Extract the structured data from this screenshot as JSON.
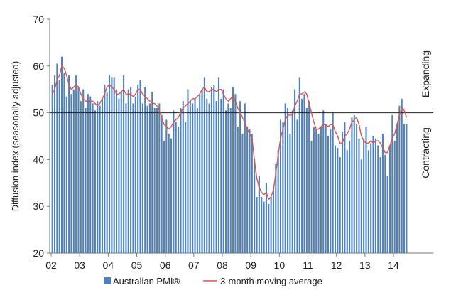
{
  "chart_data": {
    "type": "bar+line",
    "ylabel": "Diffusion index (seasonally adjusted)",
    "ylim": [
      20,
      70
    ],
    "y_ticks": [
      "20",
      "30",
      "40",
      "50",
      "60",
      "70"
    ],
    "x_ticks": [
      "02",
      "03",
      "04",
      "05",
      "06",
      "07",
      "08",
      "09",
      "10",
      "11",
      "12",
      "13",
      "14"
    ],
    "reference_line": 50,
    "right_labels": {
      "upper": "Expanding",
      "lower": "Contracting"
    },
    "legend": {
      "placement": "bottom",
      "items": [
        {
          "label": "Australian PMI®",
          "kind": "bar",
          "color": "#4f81bd"
        },
        {
          "label": "3-month moving average",
          "kind": "line",
          "color": "#d9534f"
        }
      ]
    },
    "x_start": "2002-01",
    "frequency": "monthly",
    "series": [
      {
        "name": "Australian PMI®",
        "kind": "bar",
        "color": "#4f81bd",
        "values": [
          56,
          58,
          60.5,
          57,
          62,
          58.5,
          53.5,
          58,
          54,
          55,
          58,
          55.5,
          52.5,
          55,
          51,
          54,
          53.5,
          52,
          50.5,
          52.5,
          51.5,
          53,
          56,
          54.5,
          58,
          57.5,
          57.5,
          55,
          53,
          54.5,
          58,
          52,
          55,
          55.5,
          52,
          53.5,
          56,
          57,
          52,
          55.5,
          51.5,
          52,
          54.5,
          51,
          51,
          52,
          49.5,
          44,
          48.5,
          45.5,
          44.5,
          50.5,
          48,
          47,
          51,
          52.5,
          48,
          55,
          52.5,
          52,
          53,
          51,
          54,
          55,
          57.5,
          53,
          52,
          55.5,
          56,
          52.5,
          57.5,
          53,
          55,
          50.5,
          52,
          51,
          55.5,
          54,
          47,
          52.5,
          45.5,
          52,
          47,
          46.5,
          45.5,
          39.5,
          32,
          36.5,
          32,
          31,
          35,
          30.5,
          32,
          34,
          39,
          42,
          48.5,
          48,
          52,
          51,
          45.5,
          50.5,
          55,
          48.5,
          57.5,
          53,
          54,
          51,
          52.5,
          44,
          47,
          46.5,
          45.5,
          47,
          50.5,
          47.5,
          45,
          46.5,
          50,
          43,
          42.5,
          40.5,
          46,
          48,
          42,
          44,
          49,
          49.5,
          47.5,
          44.5,
          40,
          44.5,
          47,
          42,
          43.5,
          45,
          44.5,
          43,
          40.5,
          45.5,
          41,
          36.5,
          43,
          49.5,
          44,
          47.5,
          51.5,
          53,
          47.5,
          47.5
        ]
      },
      {
        "name": "3-month moving average",
        "kind": "line",
        "color": "#d9534f",
        "values": [
          54,
          55,
          57,
          58,
          60,
          59.5,
          58,
          56,
          55,
          55.5,
          56,
          55.5,
          54,
          53,
          52.5,
          52.5,
          52.5,
          52.5,
          52,
          51.5,
          52,
          53,
          54,
          55.5,
          56,
          55.5,
          55,
          54,
          54,
          54.5,
          55,
          54,
          54,
          54,
          53.5,
          54,
          55,
          55,
          54,
          53.5,
          53,
          52.5,
          52,
          52,
          51.5,
          50.5,
          49,
          47.5,
          47,
          46.5,
          47,
          48,
          48.5,
          49,
          50,
          51,
          51.5,
          52,
          52.5,
          53,
          53,
          53.5,
          54,
          55,
          55.5,
          54.5,
          54.5,
          55,
          55,
          54.5,
          55,
          55,
          54,
          53,
          52.5,
          53,
          53.5,
          52.5,
          51,
          50,
          49,
          48,
          46.5,
          45.5,
          44.5,
          40,
          36,
          34,
          33,
          32.5,
          33,
          31.5,
          32,
          33.5,
          37,
          41,
          44.5,
          46.5,
          48.5,
          49.5,
          49.5,
          49.5,
          51.5,
          52.5,
          54,
          54,
          54.5,
          54,
          52,
          50,
          48,
          46.5,
          46.5,
          47,
          47.5,
          47.5,
          47,
          47.5,
          47.5,
          46,
          45,
          43.5,
          43.5,
          45,
          45.5,
          46.5,
          48,
          48.5,
          49,
          47.5,
          45,
          44,
          43.5,
          43.5,
          44,
          43.5,
          44,
          44,
          43.5,
          42.5,
          41.5,
          41.5,
          43,
          44.5,
          45.5,
          47.5,
          49.5,
          51,
          50.5,
          49
        ]
      }
    ]
  }
}
